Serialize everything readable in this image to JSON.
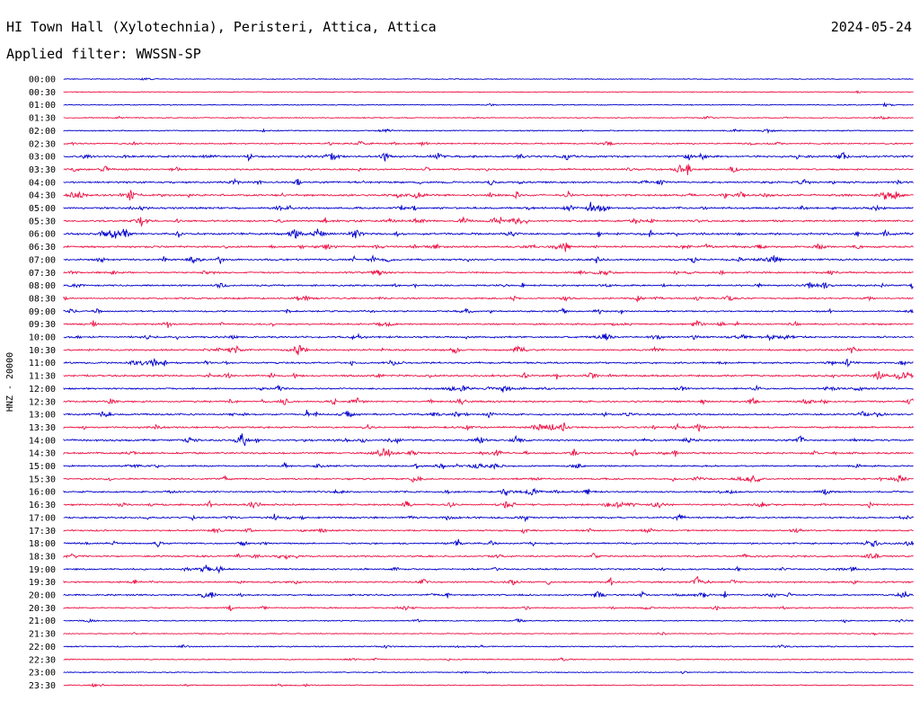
{
  "header": {
    "station_title": "HI Town Hall (Xylotechnia), Peristeri, Attica, Attica",
    "date": "2024-05-24",
    "filter_label": "Applied filter: WWSSN-SP"
  },
  "chart_data": {
    "type": "line",
    "title": "HI Town Hall (Xylotechnia), Peristeri, Attica, Attica",
    "ylabel": "HNZ - 20000",
    "xlabel": "",
    "grid": false,
    "colors": [
      "#0000cc",
      "#ee1144"
    ],
    "rows": [
      "00:00",
      "00:30",
      "01:00",
      "01:30",
      "02:00",
      "02:30",
      "03:00",
      "03:30",
      "04:00",
      "04:30",
      "05:00",
      "05:30",
      "06:00",
      "06:30",
      "07:00",
      "07:30",
      "08:00",
      "08:30",
      "09:00",
      "09:30",
      "10:00",
      "10:30",
      "11:00",
      "11:30",
      "12:00",
      "12:30",
      "13:00",
      "13:30",
      "14:00",
      "14:30",
      "15:00",
      "15:30",
      "16:00",
      "16:30",
      "17:00",
      "17:30",
      "18:00",
      "18:30",
      "19:00",
      "19:30",
      "20:00",
      "20:30",
      "21:00",
      "21:30",
      "22:00",
      "22:30",
      "23:00",
      "23:30"
    ],
    "activity": [
      0.1,
      0.08,
      0.15,
      0.2,
      0.3,
      0.5,
      0.9,
      0.7,
      0.8,
      1.0,
      0.9,
      0.9,
      1.0,
      0.9,
      0.8,
      0.7,
      0.7,
      0.6,
      0.6,
      0.7,
      0.8,
      0.8,
      0.8,
      0.9,
      0.7,
      0.8,
      0.8,
      0.8,
      0.9,
      0.8,
      0.7,
      0.7,
      0.7,
      0.8,
      0.7,
      0.6,
      0.7,
      0.7,
      0.7,
      0.7,
      0.7,
      0.5,
      0.3,
      0.2,
      0.35,
      0.2,
      0.15,
      0.25
    ]
  }
}
